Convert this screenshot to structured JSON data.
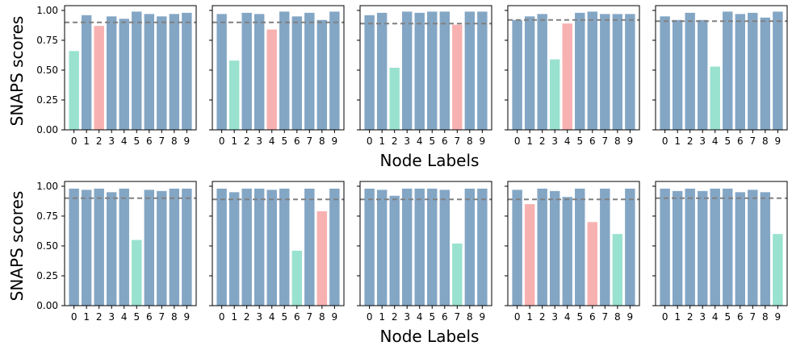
{
  "figure": {
    "ylabel": "SNAPS scores",
    "xlabel": "Node Labels"
  },
  "colors": {
    "default_bar": "#84a6c5",
    "green_bar": "#99e2cf",
    "red_bar": "#f8b1b1",
    "threshold_line": "#808080"
  },
  "chart_data": [
    {
      "type": "bar",
      "categories": [
        "0",
        "1",
        "2",
        "3",
        "4",
        "5",
        "6",
        "7",
        "8",
        "9"
      ],
      "values": [
        0.66,
        0.96,
        0.87,
        0.95,
        0.93,
        0.99,
        0.97,
        0.95,
        0.97,
        0.98
      ],
      "highlight": {
        "green": [
          0
        ],
        "red": [
          2
        ]
      },
      "threshold": 0.9,
      "ylim": [
        0,
        1.04
      ],
      "yticks": [
        "0.00",
        "0.25",
        "0.50",
        "0.75",
        "1.00"
      ]
    },
    {
      "type": "bar",
      "categories": [
        "0",
        "1",
        "2",
        "3",
        "4",
        "5",
        "6",
        "7",
        "8",
        "9"
      ],
      "values": [
        0.97,
        0.58,
        0.98,
        0.97,
        0.84,
        0.99,
        0.95,
        0.98,
        0.92,
        0.99
      ],
      "highlight": {
        "green": [
          1
        ],
        "red": [
          4
        ]
      },
      "threshold": 0.9,
      "ylim": [
        0,
        1.04
      ],
      "yticks": [
        "0.00",
        "0.25",
        "0.50",
        "0.75",
        "1.00"
      ]
    },
    {
      "type": "bar",
      "categories": [
        "0",
        "1",
        "2",
        "3",
        "4",
        "5",
        "6",
        "7",
        "8",
        "9"
      ],
      "values": [
        0.96,
        0.98,
        0.52,
        0.99,
        0.98,
        0.99,
        0.99,
        0.88,
        0.99,
        0.99
      ],
      "highlight": {
        "green": [
          2
        ],
        "red": [
          7
        ]
      },
      "threshold": 0.89,
      "ylim": [
        0,
        1.04
      ],
      "yticks": [
        "0.00",
        "0.25",
        "0.50",
        "0.75",
        "1.00"
      ]
    },
    {
      "type": "bar",
      "categories": [
        "0",
        "1",
        "2",
        "3",
        "4",
        "5",
        "6",
        "7",
        "8",
        "9"
      ],
      "values": [
        0.92,
        0.95,
        0.97,
        0.59,
        0.89,
        0.98,
        0.99,
        0.97,
        0.97,
        0.97
      ],
      "highlight": {
        "green": [
          3
        ],
        "red": [
          4
        ]
      },
      "threshold": 0.92,
      "ylim": [
        0,
        1.04
      ],
      "yticks": [
        "0.00",
        "0.25",
        "0.50",
        "0.75",
        "1.00"
      ]
    },
    {
      "type": "bar",
      "categories": [
        "0",
        "1",
        "2",
        "3",
        "4",
        "5",
        "6",
        "7",
        "8",
        "9"
      ],
      "values": [
        0.95,
        0.92,
        0.98,
        0.92,
        0.53,
        0.99,
        0.97,
        0.98,
        0.94,
        0.99
      ],
      "highlight": {
        "green": [
          4
        ],
        "red": []
      },
      "threshold": 0.91,
      "ylim": [
        0,
        1.04
      ],
      "yticks": [
        "0.00",
        "0.25",
        "0.50",
        "0.75",
        "1.00"
      ]
    },
    {
      "type": "bar",
      "categories": [
        "0",
        "1",
        "2",
        "3",
        "4",
        "5",
        "6",
        "7",
        "8",
        "9"
      ],
      "values": [
        0.98,
        0.97,
        0.98,
        0.95,
        0.98,
        0.55,
        0.97,
        0.96,
        0.98,
        0.98
      ],
      "highlight": {
        "green": [
          5
        ],
        "red": []
      },
      "threshold": 0.9,
      "ylim": [
        0,
        1.04
      ],
      "yticks": [
        "0.00",
        "0.25",
        "0.50",
        "0.75",
        "1.00"
      ]
    },
    {
      "type": "bar",
      "categories": [
        "0",
        "1",
        "2",
        "3",
        "4",
        "5",
        "6",
        "7",
        "8",
        "9"
      ],
      "values": [
        0.98,
        0.95,
        0.98,
        0.98,
        0.97,
        0.98,
        0.46,
        0.98,
        0.79,
        0.98
      ],
      "highlight": {
        "green": [
          6
        ],
        "red": [
          8
        ]
      },
      "threshold": 0.89,
      "ylim": [
        0,
        1.04
      ],
      "yticks": [
        "0.00",
        "0.25",
        "0.50",
        "0.75",
        "1.00"
      ]
    },
    {
      "type": "bar",
      "categories": [
        "0",
        "1",
        "2",
        "3",
        "4",
        "5",
        "6",
        "7",
        "8",
        "9"
      ],
      "values": [
        0.98,
        0.97,
        0.92,
        0.98,
        0.98,
        0.98,
        0.97,
        0.52,
        0.98,
        0.98
      ],
      "highlight": {
        "green": [
          7
        ],
        "red": []
      },
      "threshold": 0.89,
      "ylim": [
        0,
        1.04
      ],
      "yticks": [
        "0.00",
        "0.25",
        "0.50",
        "0.75",
        "1.00"
      ]
    },
    {
      "type": "bar",
      "categories": [
        "0",
        "1",
        "2",
        "3",
        "4",
        "5",
        "6",
        "7",
        "8",
        "9"
      ],
      "values": [
        0.97,
        0.85,
        0.98,
        0.96,
        0.91,
        0.98,
        0.7,
        0.98,
        0.6,
        0.98
      ],
      "highlight": {
        "green": [
          8
        ],
        "red": [
          1,
          6
        ]
      },
      "threshold": 0.89,
      "ylim": [
        0,
        1.04
      ],
      "yticks": [
        "0.00",
        "0.25",
        "0.50",
        "0.75",
        "1.00"
      ]
    },
    {
      "type": "bar",
      "categories": [
        "0",
        "1",
        "2",
        "3",
        "4",
        "5",
        "6",
        "7",
        "8",
        "9"
      ],
      "values": [
        0.98,
        0.96,
        0.98,
        0.96,
        0.98,
        0.98,
        0.95,
        0.97,
        0.95,
        0.6
      ],
      "highlight": {
        "green": [
          9
        ],
        "red": []
      },
      "threshold": 0.9,
      "ylim": [
        0,
        1.04
      ],
      "yticks": [
        "0.00",
        "0.25",
        "0.50",
        "0.75",
        "1.00"
      ]
    }
  ]
}
